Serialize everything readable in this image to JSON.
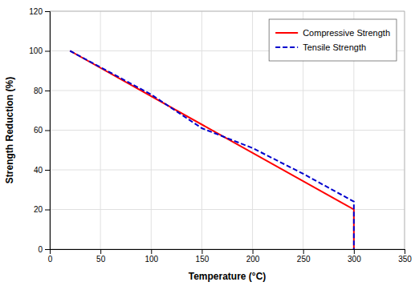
{
  "chart_data": {
    "type": "line",
    "xlabel": "Temperature (°C)",
    "ylabel": "Strength Reduction (%)",
    "series": [
      {
        "name": "Compressive Strength",
        "color": "#FF0000",
        "line_style": "solid",
        "x": [
          20,
          300,
          300
        ],
        "values": [
          100,
          20,
          0
        ]
      },
      {
        "name": "Tensile Strength",
        "color": "#0000CD",
        "line_style": "dashed",
        "x": [
          20,
          100,
          150,
          200,
          250,
          300,
          300
        ],
        "values": [
          100,
          78,
          61,
          51,
          38,
          24,
          0
        ]
      }
    ],
    "xlim": [
      0,
      350
    ],
    "ylim": [
      0,
      120
    ],
    "xticks": [
      0,
      50,
      100,
      150,
      200,
      250,
      300,
      350
    ],
    "yticks": [
      0,
      20,
      40,
      60,
      80,
      100,
      120
    ],
    "grid": true,
    "legend": "upper right"
  }
}
